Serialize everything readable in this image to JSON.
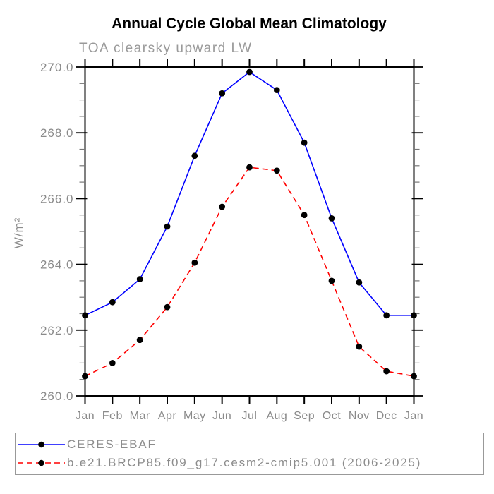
{
  "header": {
    "title": "Annual Cycle Global Mean Climatology",
    "subtitle": "TOA clearsky upward LW"
  },
  "chart_data": {
    "type": "line",
    "title": "Annual Cycle Global Mean Climatology",
    "subtitle": "TOA clearsky upward LW",
    "xlabel": "",
    "ylabel": "W/m²",
    "categories": [
      "Jan",
      "Feb",
      "Mar",
      "Apr",
      "May",
      "Jun",
      "Jul",
      "Aug",
      "Sep",
      "Oct",
      "Nov",
      "Dec",
      "Jan"
    ],
    "ylim": [
      260.0,
      270.0
    ],
    "ytick_major_interval": 2.0,
    "ytick_minor_interval": 0.5,
    "ytick_labels": [
      "260.0",
      "262.0",
      "264.0",
      "266.0",
      "268.0",
      "270.0"
    ],
    "grid": false,
    "legend_position": "bottom",
    "series": [
      {
        "name": "CERES-EBAF",
        "color": "#0000ff",
        "line_style": "solid",
        "marker": "filled-circle",
        "marker_color": "#000000",
        "values": [
          262.45,
          262.85,
          263.55,
          265.15,
          267.3,
          269.2,
          269.85,
          269.3,
          267.7,
          265.4,
          263.45,
          262.45,
          262.45
        ]
      },
      {
        "name": "b.e21.BRCP85.f09_g17.cesm2-cmip5.001 (2006-2025)",
        "color": "#ff0000",
        "line_style": "dashed",
        "marker": "filled-circle",
        "marker_color": "#000000",
        "values": [
          260.6,
          261.0,
          261.7,
          262.7,
          264.05,
          265.75,
          266.95,
          266.85,
          265.5,
          263.5,
          261.5,
          260.75,
          260.6
        ]
      }
    ]
  },
  "colors": {
    "axis": "#000000",
    "minor_tick": "#777777",
    "tick_label_gray": "#8a8a8a",
    "subtitle_gray": "#9a9a9a",
    "legend_border": "#999999",
    "background": "#ffffff"
  }
}
